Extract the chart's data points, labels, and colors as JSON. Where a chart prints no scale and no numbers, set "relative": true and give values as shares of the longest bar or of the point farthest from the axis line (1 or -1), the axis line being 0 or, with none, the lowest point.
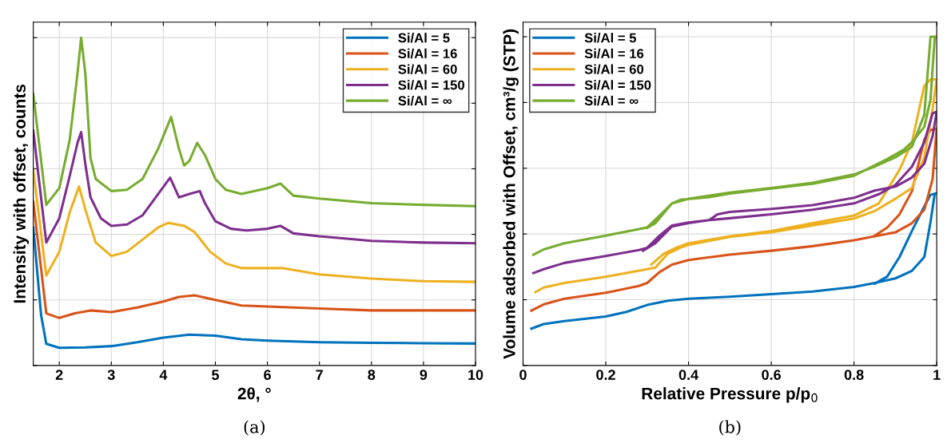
{
  "chart_data": [
    {
      "type": "line",
      "relative": true,
      "xlabel": "2θ, °",
      "ylabel": "Intensity with offset, counts",
      "xlim": [
        1.5,
        10
      ],
      "xticks": [
        2,
        3,
        4,
        5,
        6,
        7,
        8,
        9,
        10
      ],
      "grid": true,
      "legend": "top right",
      "line_style": "solid",
      "marker": "none",
      "annotations": [
        "(a)"
      ],
      "series": [
        {
          "name": "Si/Al = 5",
          "color": "#0072bd",
          "x": [
            1.5,
            1.65,
            1.75,
            2.0,
            2.5,
            3.0,
            3.5,
            4.0,
            4.5,
            5.0,
            5.5,
            6.0,
            7.0,
            8.0,
            9.0,
            10
          ],
          "values": [
            0.421,
            0.154,
            0.066,
            0.054,
            0.055,
            0.059,
            0.071,
            0.085,
            0.094,
            0.091,
            0.08,
            0.076,
            0.071,
            0.069,
            0.068,
            0.067
          ]
        },
        {
          "name": "Si/Al = 16",
          "color": "#d95319",
          "x": [
            1.5,
            1.75,
            2.0,
            2.3,
            2.6,
            3.0,
            3.5,
            4.0,
            4.3,
            4.6,
            5.0,
            5.5,
            6.0,
            7.0,
            8.0,
            9.0,
            10
          ],
          "values": [
            0.5,
            0.159,
            0.145,
            0.159,
            0.168,
            0.163,
            0.177,
            0.195,
            0.209,
            0.214,
            0.2,
            0.183,
            0.18,
            0.174,
            0.168,
            0.168,
            0.168
          ]
        },
        {
          "name": "Si/Al = 60",
          "color": "#edb120",
          "x": [
            1.5,
            1.75,
            2.0,
            2.2,
            2.38,
            2.5,
            2.7,
            3.0,
            3.3,
            3.6,
            3.9,
            4.1,
            4.4,
            4.6,
            4.9,
            5.2,
            5.5,
            6.0,
            6.3,
            7.0,
            8.0,
            9.0,
            10
          ],
          "values": [
            0.596,
            0.274,
            0.347,
            0.467,
            0.546,
            0.476,
            0.375,
            0.334,
            0.347,
            0.384,
            0.421,
            0.435,
            0.426,
            0.407,
            0.347,
            0.311,
            0.297,
            0.297,
            0.297,
            0.278,
            0.265,
            0.257,
            0.255
          ]
        },
        {
          "name": "Si/Al = 150",
          "color": "#7e2f8e",
          "x": [
            1.5,
            1.75,
            2.0,
            2.2,
            2.35,
            2.42,
            2.5,
            2.6,
            2.8,
            3.0,
            3.3,
            3.6,
            3.9,
            4.13,
            4.3,
            4.5,
            4.7,
            4.8,
            5.0,
            5.3,
            5.6,
            6.0,
            6.25,
            6.5,
            7.0,
            8.0,
            9.0,
            10
          ],
          "values": [
            0.716,
            0.375,
            0.449,
            0.578,
            0.679,
            0.712,
            0.615,
            0.513,
            0.449,
            0.426,
            0.43,
            0.458,
            0.523,
            0.573,
            0.513,
            0.523,
            0.532,
            0.495,
            0.44,
            0.417,
            0.412,
            0.417,
            0.426,
            0.403,
            0.394,
            0.38,
            0.375,
            0.373
          ]
        },
        {
          "name": "Si/Al = ∞",
          "color": "#77ac30",
          "x": [
            1.5,
            1.75,
            2.0,
            2.2,
            2.35,
            2.42,
            2.5,
            2.6,
            2.7,
            3.0,
            3.3,
            3.6,
            3.9,
            4.15,
            4.3,
            4.4,
            4.5,
            4.65,
            4.8,
            5.0,
            5.2,
            5.5,
            6.0,
            6.25,
            6.5,
            7.0,
            8.0,
            9.0,
            10
          ],
          "values": [
            0.829,
            0.49,
            0.541,
            0.688,
            0.891,
            1.0,
            0.891,
            0.633,
            0.569,
            0.532,
            0.536,
            0.569,
            0.661,
            0.758,
            0.661,
            0.61,
            0.624,
            0.679,
            0.642,
            0.569,
            0.536,
            0.523,
            0.541,
            0.555,
            0.518,
            0.509,
            0.495,
            0.49,
            0.486
          ]
        }
      ]
    },
    {
      "type": "line",
      "relative": true,
      "xlabel": "Relative Pressure p/p$_{0}$",
      "ylabel": "Volume adsorbed with Offset, cm³/g (STP)",
      "xlim": [
        0,
        1
      ],
      "xticks": [
        0,
        0.2,
        0.4,
        0.6,
        0.8,
        1
      ],
      "grid": true,
      "legend": "top left",
      "line_style": "solid",
      "marker": "none",
      "annotations": [
        "(b)"
      ],
      "series": [
        {
          "name": "Si/Al = 5",
          "color": "#0072bd",
          "x": [
            0.02,
            0.05,
            0.1,
            0.2,
            0.25,
            0.3,
            0.35,
            0.4,
            0.5,
            0.6,
            0.7,
            0.8,
            0.85,
            0.9,
            0.94,
            0.97,
            0.985,
            0.995,
            1.0,
            0.985,
            0.97,
            0.94,
            0.91,
            0.88,
            0.85
          ],
          "values": [
            0.112,
            0.126,
            0.135,
            0.149,
            0.163,
            0.184,
            0.197,
            0.203,
            0.209,
            0.217,
            0.225,
            0.239,
            0.251,
            0.265,
            0.288,
            0.33,
            0.437,
            0.521,
            0.524,
            0.519,
            0.484,
            0.409,
            0.33,
            0.27,
            0.249
          ]
        },
        {
          "name": "Si/Al = 16",
          "color": "#d95319",
          "x": [
            0.02,
            0.05,
            0.1,
            0.2,
            0.28,
            0.3,
            0.33,
            0.36,
            0.4,
            0.5,
            0.6,
            0.7,
            0.8,
            0.85,
            0.9,
            0.94,
            0.97,
            0.99,
            1.0,
            0.985,
            0.97,
            0.94,
            0.91,
            0.88,
            0.85
          ],
          "values": [
            0.167,
            0.186,
            0.203,
            0.221,
            0.242,
            0.251,
            0.284,
            0.307,
            0.321,
            0.337,
            0.349,
            0.363,
            0.381,
            0.393,
            0.405,
            0.433,
            0.474,
            0.567,
            0.721,
            0.716,
            0.688,
            0.53,
            0.46,
            0.419,
            0.395
          ]
        },
        {
          "name": "Si/Al = 60",
          "color": "#edb120",
          "x": [
            0.03,
            0.05,
            0.1,
            0.2,
            0.3,
            0.32,
            0.35,
            0.38,
            0.4,
            0.5,
            0.6,
            0.7,
            0.8,
            0.85,
            0.9,
            0.94,
            0.97,
            0.99,
            1.0,
            0.985,
            0.97,
            0.94,
            0.91,
            0.86,
            0.8,
            0.7,
            0.6,
            0.5,
            0.4,
            0.37,
            0.34,
            0.31
          ],
          "values": [
            0.223,
            0.237,
            0.251,
            0.27,
            0.293,
            0.298,
            0.34,
            0.358,
            0.367,
            0.391,
            0.405,
            0.426,
            0.447,
            0.47,
            0.507,
            0.54,
            0.633,
            0.781,
            0.87,
            0.87,
            0.851,
            0.679,
            0.595,
            0.493,
            0.456,
            0.433,
            0.409,
            0.393,
            0.372,
            0.358,
            0.34,
            0.307
          ]
        },
        {
          "name": "Si/Al = 150",
          "color": "#7e2f8e",
          "x": [
            0.025,
            0.05,
            0.1,
            0.2,
            0.28,
            0.3,
            0.33,
            0.36,
            0.4,
            0.45,
            0.5,
            0.6,
            0.7,
            0.8,
            0.86,
            0.9,
            0.94,
            0.97,
            0.99,
            1.0,
            0.99,
            0.97,
            0.94,
            0.9,
            0.85,
            0.8,
            0.7,
            0.6,
            0.5,
            0.47,
            0.45,
            0.4,
            0.36,
            0.32,
            0.29
          ],
          "values": [
            0.281,
            0.293,
            0.312,
            0.333,
            0.351,
            0.358,
            0.395,
            0.426,
            0.435,
            0.442,
            0.448,
            0.46,
            0.474,
            0.493,
            0.521,
            0.549,
            0.605,
            0.679,
            0.767,
            0.772,
            0.698,
            0.614,
            0.572,
            0.544,
            0.532,
            0.51,
            0.488,
            0.476,
            0.467,
            0.46,
            0.442,
            0.433,
            0.423,
            0.372,
            0.349
          ]
        },
        {
          "name": "Si/Al = ∞",
          "color": "#77ac30",
          "x": [
            0.025,
            0.05,
            0.1,
            0.2,
            0.3,
            0.33,
            0.36,
            0.4,
            0.5,
            0.6,
            0.7,
            0.8,
            0.85,
            0.9,
            0.94,
            0.97,
            0.985,
            1.0,
            0.995,
            0.985,
            0.97,
            0.94,
            0.92,
            0.88,
            0.85,
            0.8,
            0.7,
            0.6,
            0.5,
            0.45,
            0.38,
            0.36,
            0.32,
            0.3
          ],
          "values": [
            0.337,
            0.353,
            0.372,
            0.395,
            0.42,
            0.456,
            0.493,
            0.507,
            0.526,
            0.54,
            0.556,
            0.581,
            0.605,
            0.633,
            0.665,
            0.763,
            1.0,
            1.0,
            0.995,
            0.809,
            0.726,
            0.679,
            0.656,
            0.628,
            0.609,
            0.577,
            0.553,
            0.538,
            0.523,
            0.512,
            0.504,
            0.493,
            0.433,
            0.419
          ]
        }
      ]
    }
  ]
}
